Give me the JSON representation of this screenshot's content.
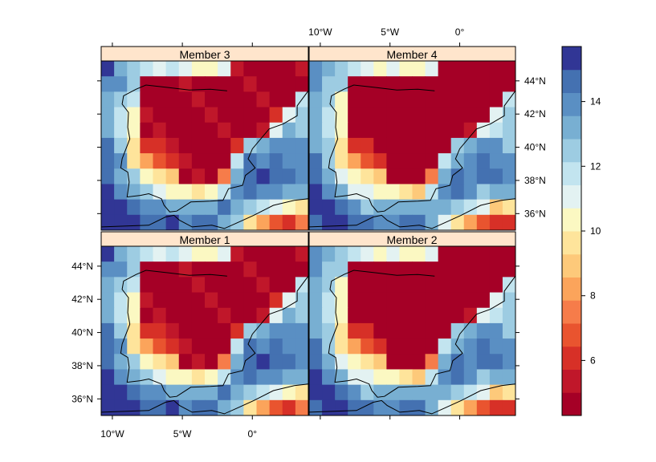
{
  "panels": [
    {
      "title": "Member  3"
    },
    {
      "title": "Member  4"
    },
    {
      "title": "Member  1"
    },
    {
      "title": "Member  2"
    }
  ],
  "x_axis": {
    "ticks": [
      "10°W",
      "5°W",
      "0°"
    ],
    "values": [
      -10,
      -5,
      0
    ]
  },
  "y_axis": {
    "ticks": [
      "44°N",
      "42°N",
      "40°N",
      "38°N",
      "36°N"
    ],
    "values": [
      44,
      42,
      40,
      38,
      36
    ]
  },
  "colorkey": {
    "ticks": [
      "14",
      "12",
      "10",
      "8",
      "6"
    ],
    "values": [
      14,
      12,
      10,
      8,
      6
    ],
    "range": [
      4.3,
      15.7
    ]
  },
  "palette": [
    "#a50026",
    "#c0172a",
    "#d73027",
    "#e9542f",
    "#f67c4a",
    "#fba45b",
    "#fdc97a",
    "#fee49b",
    "#fbf8c2",
    "#e3f2f2",
    "#c2e4ef",
    "#9dcce2",
    "#78afd2",
    "#5a8fc3",
    "#4471b1",
    "#313695"
  ],
  "strip_color": "#ffe5cc",
  "chart_data": {
    "type": "heatmap",
    "panels": [
      "Member  3",
      "Member  4",
      "Member  1",
      "Member  2"
    ],
    "xlim": [
      -10.8,
      4
    ],
    "ylim": [
      35,
      45.2
    ],
    "value_range": [
      4.3,
      15.7
    ],
    "note_units": "none shown"
  }
}
